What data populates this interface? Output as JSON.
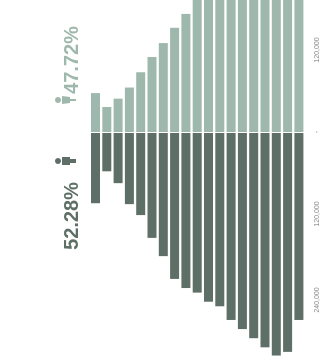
{
  "chart_data": {
    "type": "bar",
    "orientation": "horizontal-split (rotated population pyramid)",
    "series": [
      {
        "name": "female",
        "percent_label": "47.72%",
        "color": "#9fb8ad",
        "values": [
          56000,
          36000,
          48000,
          64000,
          86000,
          108000,
          128000,
          150000,
          170000,
          190000,
          190000,
          190000,
          190000,
          190000,
          190000,
          190000,
          190000,
          190000,
          190000
        ]
      },
      {
        "name": "male",
        "percent_label": "52.28%",
        "color": "#5e6f67",
        "values": [
          77000,
          42000,
          55000,
          78000,
          90000,
          115000,
          135000,
          160000,
          170000,
          175000,
          185000,
          190000,
          205000,
          215000,
          225000,
          235000,
          244000,
          240000,
          205000
        ]
      }
    ],
    "axis_ticks": [
      "120,000",
      "120,000",
      "240,000"
    ],
    "center_tick": "-",
    "vlim": [
      0,
      250000
    ]
  },
  "icons": {
    "female": "female-person-icon",
    "male": "male-person-icon"
  }
}
